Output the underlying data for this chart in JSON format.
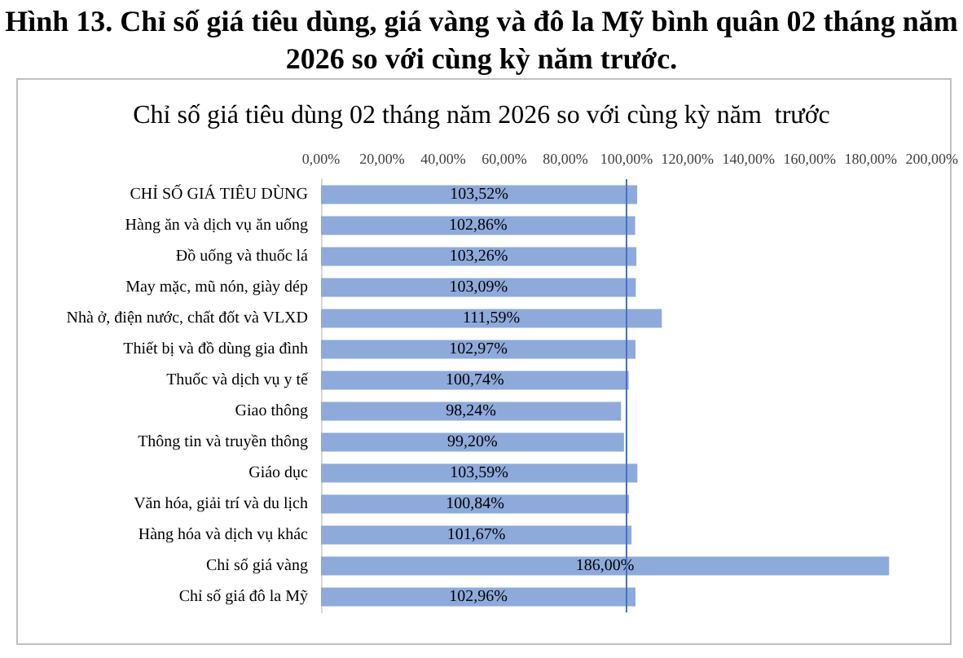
{
  "chart_data": {
    "type": "bar",
    "orientation": "horizontal",
    "title": "Hình 13. Chỉ số giá tiêu dùng, giá vàng và đô la Mỹ bình quân 02 tháng năm 2026 so với cùng kỳ năm trước.",
    "subtitle": "Chỉ số giá tiêu dùng 02 tháng năm 2026 so với cùng kỳ năm  trước",
    "categories": [
      "CHỈ SỐ GIÁ TIÊU DÙNG",
      "Hàng ăn và dịch vụ ăn uống",
      "Đồ uống và thuốc lá",
      "May mặc, mũ nón, giày dép",
      "Nhà ở, điện nước, chất đốt và VLXD",
      "Thiết bị và đồ dùng gia đình",
      "Thuốc và dịch vụ y tế",
      "Giao thông",
      "Thông tin và truyền thông",
      "Giáo dục",
      "Văn hóa, giải trí và du lịch",
      "Hàng hóa và dịch vụ khác",
      "Chỉ số giá vàng",
      "Chỉ số giá đô la Mỹ"
    ],
    "values": [
      103.52,
      102.86,
      103.26,
      103.09,
      111.59,
      102.97,
      100.74,
      98.24,
      99.2,
      103.59,
      100.84,
      101.67,
      186,
      102.96
    ],
    "value_labels": [
      "103,52%",
      "102,86%",
      "103,26%",
      "103,09%",
      "111,59%",
      "102,97%",
      "100,74%",
      "98,24%",
      "99,20%",
      "103,59%",
      "100,84%",
      "101,67%",
      "186,00%",
      "102,96%"
    ],
    "color": "#8eaadb",
    "xlim": [
      0,
      200
    ],
    "xticks": [
      {
        "value": 0,
        "label": "0,00%"
      },
      {
        "value": 20,
        "label": "20,00%"
      },
      {
        "value": 40,
        "label": "40,00%"
      },
      {
        "value": 60,
        "label": "60,00%"
      },
      {
        "value": 80,
        "label": "80,00%"
      },
      {
        "value": 100,
        "label": "100,00%"
      },
      {
        "value": 120,
        "label": "120,00%"
      },
      {
        "value": 140,
        "label": "140,00%"
      },
      {
        "value": 160,
        "label": "160,00%"
      },
      {
        "value": 180,
        "label": "180,00%"
      },
      {
        "value": 200,
        "label": "200,00%"
      }
    ],
    "ref_lines": [
      {
        "axis": "x",
        "value": 100,
        "color": "#4472c4"
      }
    ]
  }
}
